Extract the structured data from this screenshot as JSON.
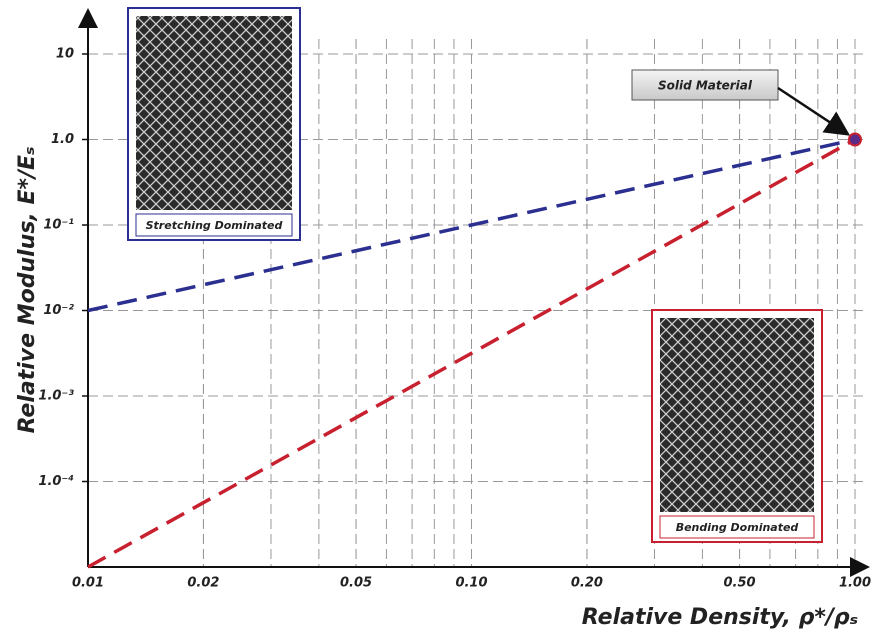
{
  "chart_data": {
    "type": "line",
    "x_label": "Relative Density, ρ*/ρₛ",
    "y_label": "Relative Modulus, E*/Eₛ",
    "log_x": true,
    "log_y": true,
    "grid": true,
    "x": [
      0.01,
      1
    ],
    "series": [
      {
        "name": "Stretching Dominated",
        "color": "#2b2f8f",
        "values": [
          0.01,
          1
        ]
      },
      {
        "name": "Bending Dominated",
        "color": "#c8202f",
        "values": [
          1e-05,
          1
        ]
      }
    ],
    "xlim": [
      0.01,
      1
    ],
    "ylim": [
      1e-05,
      10
    ],
    "xticks": [
      0.01,
      0.02,
      0.05,
      {
        "value": 0.1,
        "label": "0.10"
      },
      {
        "value": 0.2,
        "label": "0.20"
      },
      {
        "value": 0.5,
        "label": "0.50"
      },
      {
        "value": 1,
        "label": "1.00"
      }
    ],
    "yticks": [
      {
        "value": 0.0001,
        "label": "1.0⁻⁴"
      },
      {
        "value": 0.001,
        "label": "1.0⁻³"
      },
      {
        "value": 0.01,
        "label": "10⁻²"
      },
      {
        "value": 0.1,
        "label": "10⁻¹"
      },
      {
        "value": 1,
        "label": "1.0"
      },
      10
    ],
    "annotations": [
      {
        "text": "Solid Material",
        "x": 1,
        "y": 1
      }
    ]
  }
}
